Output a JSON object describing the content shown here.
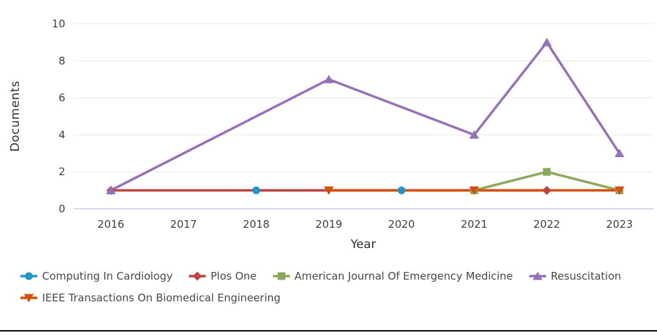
{
  "chart_data": {
    "type": "line",
    "title": "",
    "xlabel": "Year",
    "ylabel": "Documents",
    "x": [
      2016,
      2017,
      2018,
      2019,
      2020,
      2021,
      2022,
      2023
    ],
    "ylim": [
      0,
      10
    ],
    "yticks": [
      0,
      2,
      4,
      6,
      8,
      10
    ],
    "grid": "horizontal-only",
    "legend_position": "bottom-left",
    "series": [
      {
        "name": "Computing In Cardiology",
        "color": "#1E97C9",
        "marker": "circle",
        "points": [
          {
            "x": 2018,
            "y": 1
          },
          {
            "x": 2020,
            "y": 1
          }
        ]
      },
      {
        "name": "Plos One",
        "color": "#BE4442",
        "marker": "diamond",
        "points": [
          {
            "x": 2016,
            "y": 1
          },
          {
            "x": 2022,
            "y": 1
          }
        ]
      },
      {
        "name": "American Journal Of Emergency Medicine",
        "color": "#8CA95B",
        "marker": "square",
        "points": [
          {
            "x": 2021,
            "y": 1
          },
          {
            "x": 2022,
            "y": 2
          },
          {
            "x": 2023,
            "y": 1
          }
        ]
      },
      {
        "name": "Resuscitation",
        "color": "#9472B7",
        "marker": "triangle-up",
        "points": [
          {
            "x": 2016,
            "y": 1
          },
          {
            "x": 2019,
            "y": 7
          },
          {
            "x": 2021,
            "y": 4
          },
          {
            "x": 2022,
            "y": 9
          },
          {
            "x": 2023,
            "y": 3
          }
        ]
      },
      {
        "name": "IEEE Transactions On Biomedical Engineering",
        "color": "#D4500F",
        "marker": "triangle-down",
        "points": [
          {
            "x": 2019,
            "y": 1
          },
          {
            "x": 2021,
            "y": 1
          },
          {
            "x": 2023,
            "y": 1
          }
        ]
      }
    ],
    "axis_colors": {
      "gridline": "#E8E8E8",
      "baseline": "#C7D0E4",
      "tick_text": "#3E3E3E"
    }
  }
}
